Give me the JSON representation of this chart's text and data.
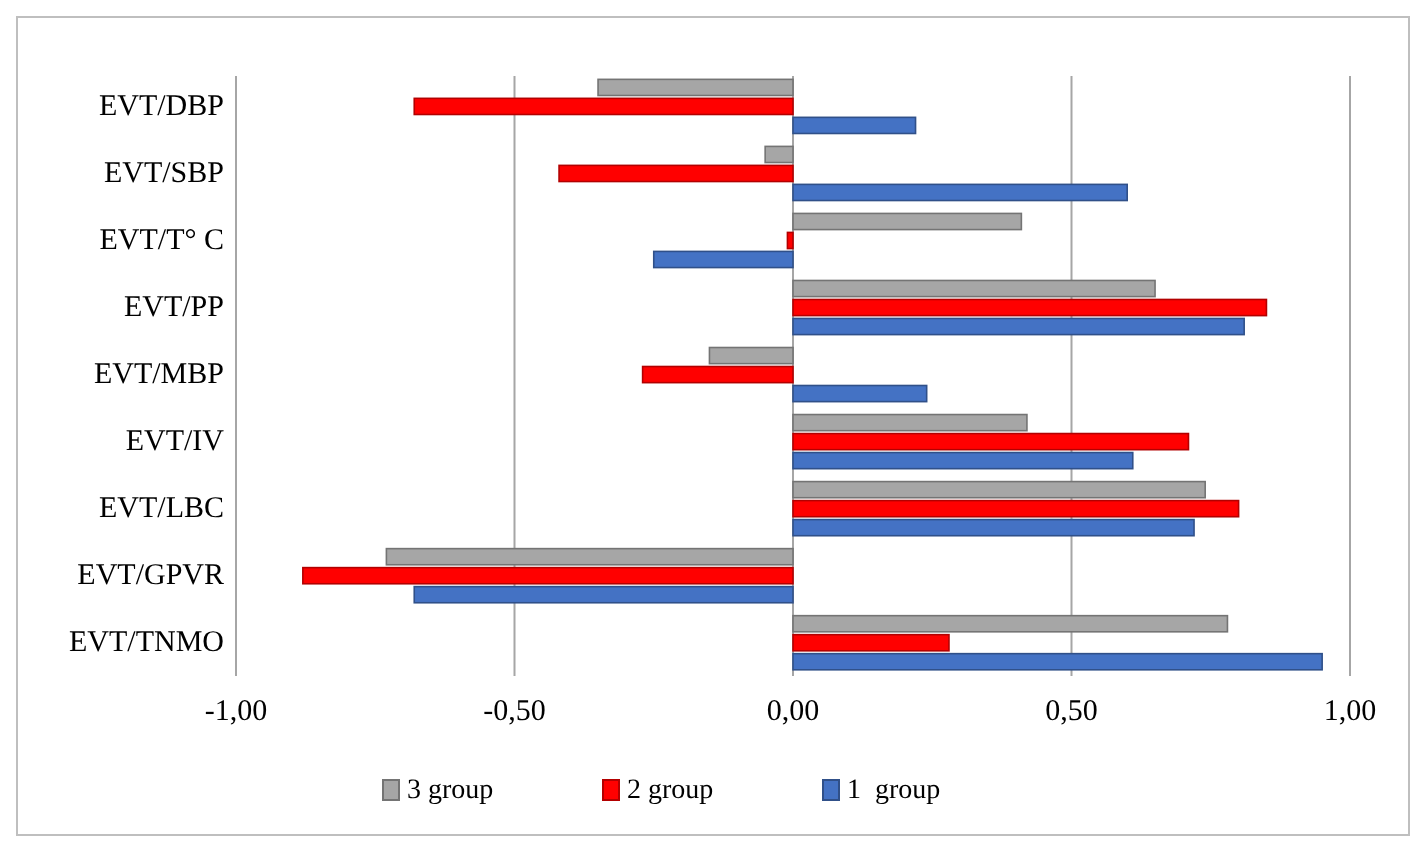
{
  "chart_data": {
    "type": "bar",
    "orientation": "horizontal",
    "categories": [
      "EVT/DBP",
      "EVT/SBP",
      "EVT/T° C",
      "EVT/PP",
      "EVT/MBP",
      "EVT/IV",
      "EVT/LBC",
      "EVT/GPVR",
      "EVT/TNMO"
    ],
    "series": [
      {
        "name": "3 group",
        "color": "#a6a6a6",
        "values": [
          -0.35,
          -0.05,
          0.41,
          0.65,
          -0.15,
          0.42,
          0.74,
          -0.73,
          0.78
        ]
      },
      {
        "name": "2 group",
        "color": "#ff0000",
        "values": [
          -0.68,
          -0.42,
          -0.01,
          0.85,
          -0.27,
          0.71,
          0.8,
          -0.88,
          0.28
        ]
      },
      {
        "name": "1  group",
        "color": "#4472c4",
        "values": [
          0.22,
          0.6,
          -0.25,
          0.81,
          0.24,
          0.61,
          0.72,
          -0.68,
          0.95
        ]
      }
    ],
    "xlim": [
      -1,
      1
    ],
    "xticks": [
      {
        "value": -1,
        "label": "-1,00"
      },
      {
        "value": -0.5,
        "label": "-0,50"
      },
      {
        "value": 0,
        "label": "0,00"
      },
      {
        "value": 0.5,
        "label": "0,50"
      },
      {
        "value": 1,
        "label": "1,00"
      }
    ],
    "grid": "x",
    "legend": "bottom"
  }
}
